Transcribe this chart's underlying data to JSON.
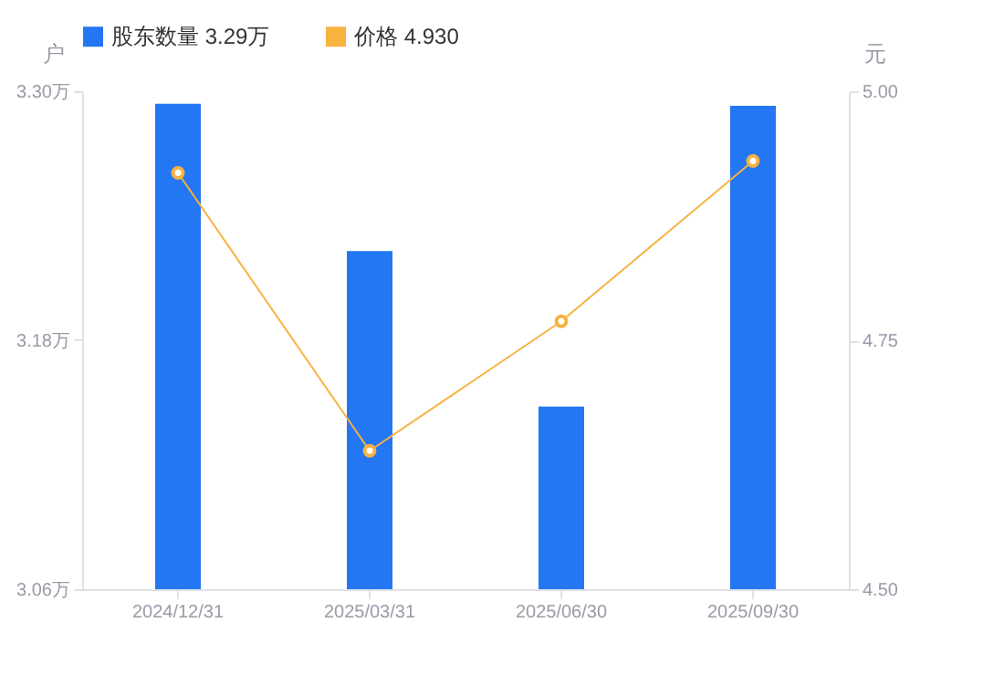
{
  "chart_data": {
    "type": "bar",
    "categories": [
      "2024/12/31",
      "2025/03/31",
      "2025/06/30",
      "2025/09/30"
    ],
    "series": [
      {
        "name": "股东数量 3.29万",
        "color": "#2477f2",
        "values": [
          3.294,
          3.223,
          3.148,
          3.293
        ]
      },
      {
        "name": "价格 4.930",
        "type": "line",
        "axis": "y2",
        "color": "#f7b240",
        "values": [
          4.918,
          4.639,
          4.769,
          4.93
        ]
      }
    ],
    "ylabel": "户",
    "y2label": "元",
    "ylim": [
      3.06,
      3.3
    ],
    "yticks": [
      {
        "value": 3.06,
        "label": "3.06万"
      },
      {
        "value": 3.18,
        "label": "3.18万"
      },
      {
        "value": 3.3,
        "label": "3.30万"
      }
    ],
    "y2lim": [
      4.5,
      5
    ],
    "y2ticks": [
      {
        "value": 4.5,
        "label": "4.50"
      },
      {
        "value": 4.75,
        "label": "4.75"
      },
      {
        "value": 5,
        "label": "5.00"
      }
    ],
    "grid": false,
    "legend": "top left",
    "marker": "circle",
    "line_style": "solid"
  }
}
